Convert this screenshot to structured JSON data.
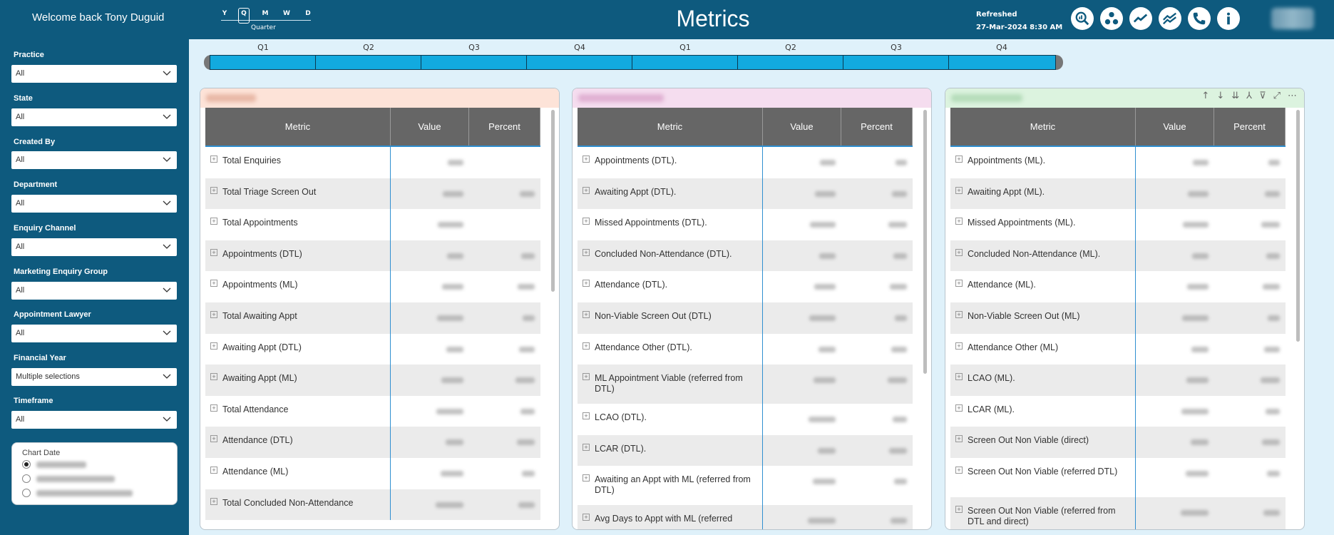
{
  "header": {
    "welcome": "Welcome back Tony Duguid",
    "title": "Metrics",
    "refreshed_label": "Refreshed",
    "refreshed_time": "27-Mar-2024 8:30 AM",
    "timeslider": {
      "levels": [
        "Y",
        "Q",
        "M",
        "W",
        "D"
      ],
      "selected": "Q",
      "selected_label": "Quarter"
    },
    "icons": [
      "analytics-icon",
      "org-chart-icon",
      "trend-line-icon",
      "multi-trend-icon",
      "phone-icon",
      "info-icon"
    ]
  },
  "sidebar": {
    "filters": [
      {
        "label": "Practice",
        "value": "All"
      },
      {
        "label": "State",
        "value": "All"
      },
      {
        "label": "Created By",
        "value": "All"
      },
      {
        "label": "Department",
        "value": "All"
      },
      {
        "label": "Enquiry Channel",
        "value": "All"
      },
      {
        "label": "Marketing Enquiry Group",
        "value": "All"
      },
      {
        "label": "Appointment Lawyer",
        "value": "All"
      },
      {
        "label": "Financial Year",
        "value": "Multiple selections"
      },
      {
        "label": "Timeframe",
        "value": "All"
      }
    ],
    "chart_date": {
      "title": "Chart Date",
      "selected_index": 0,
      "options": 3
    }
  },
  "timeline": {
    "quarters": [
      "Q1",
      "Q2",
      "Q3",
      "Q4",
      "Q1",
      "Q2",
      "Q3",
      "Q4"
    ]
  },
  "colors": {
    "header_bg": "#0e5a7e",
    "page_bg": "#dff1fa",
    "timeline_bar": "#12aadf",
    "panel1_head": "#fde3d8",
    "panel2_head": "#f5ddef",
    "panel3_head": "#dcf3df"
  },
  "panels": [
    {
      "columns": [
        "Metric",
        "Value",
        "Percent"
      ],
      "rows": [
        "Total Enquiries",
        "Total Triage Screen Out",
        "Total Appointments",
        "Appointments (DTL)",
        "Appointments (ML)",
        "Total Awaiting Appt",
        "Awaiting Appt (DTL)",
        "Awaiting Appt (ML)",
        "Total Attendance",
        "Attendance (DTL)",
        "Attendance (ML)",
        "Total Concluded Non-Attendance"
      ]
    },
    {
      "columns": [
        "Metric",
        "Value",
        "Percent"
      ],
      "rows": [
        "Appointments (DTL).",
        "Awaiting Appt (DTL).",
        "Missed Appointments (DTL).",
        "Concluded Non-Attendance (DTL).",
        "Attendance (DTL).",
        "Non-Viable Screen Out (DTL)",
        "Attendance Other (DTL).",
        "ML Appointment Viable (referred from DTL)",
        "LCAO (DTL).",
        "LCAR (DTL).",
        "Awaiting an Appt with ML (referred from DTL)",
        "Avg Days to Appt with ML (referred"
      ]
    },
    {
      "columns": [
        "Metric",
        "Value",
        "Percent"
      ],
      "rows": [
        "Appointments (ML).",
        "Awaiting Appt (ML).",
        "Missed Appointments (ML).",
        "Concluded Non-Attendance (ML).",
        "Attendance (ML).",
        "Non-Viable Screen Out (ML)",
        "Attendance Other (ML)",
        "LCAO (ML).",
        "LCAR (ML).",
        "Screen Out Non Viable (direct)",
        "Screen Out Non Viable (referred DTL)",
        "Screen Out Non Viable (referred from DTL and direct)"
      ]
    }
  ]
}
